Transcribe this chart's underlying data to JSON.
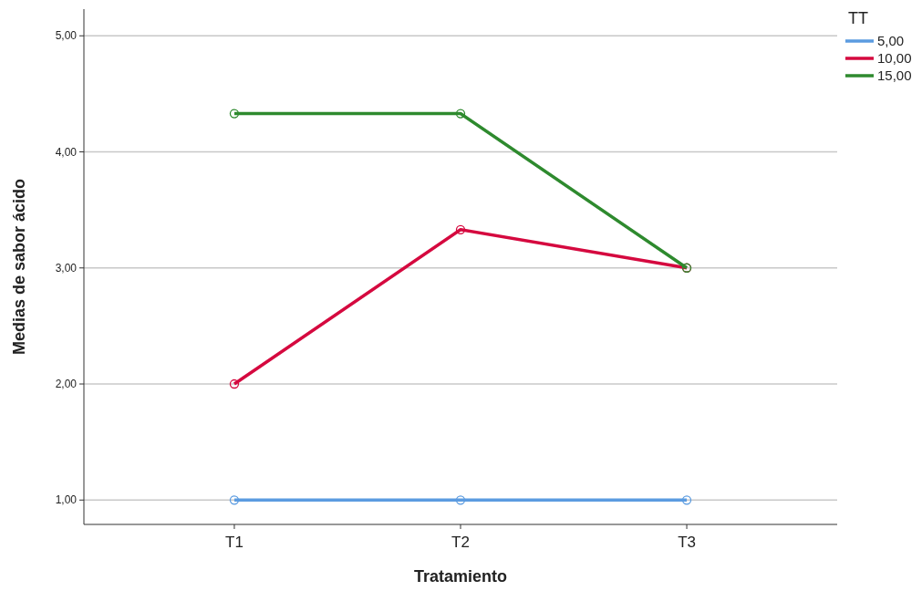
{
  "chart_data": {
    "type": "line",
    "xlabel": "Tratamiento",
    "ylabel": "Medias de sabor ácido",
    "legend_title": "TT",
    "categories": [
      "T1",
      "T2",
      "T3"
    ],
    "series": [
      {
        "name": "5,00",
        "color": "#5b9be0",
        "values": [
          1,
          1,
          1
        ]
      },
      {
        "name": "10,00",
        "color": "#d5093f",
        "values": [
          2,
          3.33,
          3
        ]
      },
      {
        "name": "15,00",
        "color": "#2e8a2e",
        "values": [
          4.33,
          4.33,
          3
        ]
      }
    ],
    "ylim": [
      0.79,
      5.23
    ],
    "yticks": [
      {
        "value": 1,
        "label": "1,00"
      },
      {
        "value": 2,
        "label": "2,00"
      },
      {
        "value": 3,
        "label": "3,00"
      },
      {
        "value": 4,
        "label": "4,00"
      },
      {
        "value": 5,
        "label": "5,00"
      }
    ],
    "grid": "y",
    "legend": "top right",
    "marker": "circle",
    "line_style": "solid"
  }
}
